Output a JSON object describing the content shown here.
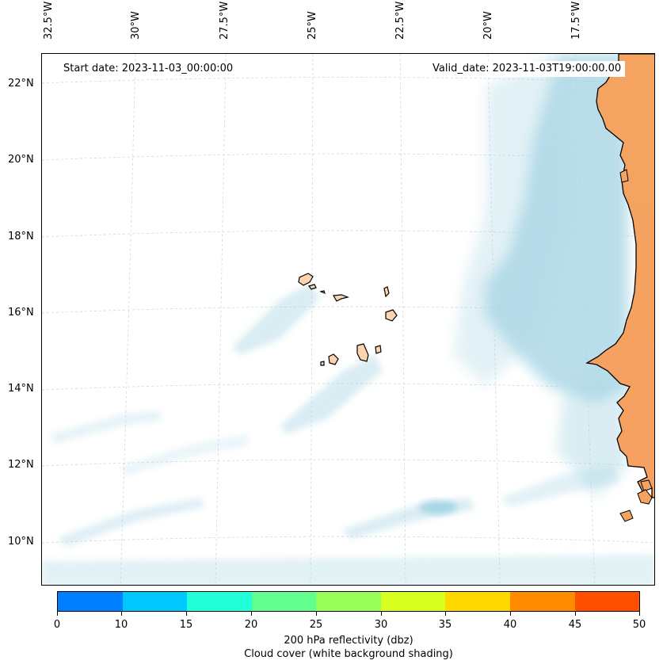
{
  "map": {
    "start_label": "Start date: 2023-11-03_00:00:00",
    "valid_label": "Valid_date: 2023-11-03T19:00:00.00",
    "lon_labels": [
      "32.5°W",
      "30°W",
      "27.5°W",
      "25°W",
      "22.5°W",
      "20°W",
      "17.5°W"
    ],
    "lat_labels": [
      "22°N",
      "20°N",
      "18°N",
      "16°N",
      "14°N",
      "12°N",
      "10°N"
    ],
    "extent": {
      "lon_min": -32.6,
      "lon_max": -15.4,
      "lat_min": 8.9,
      "lat_max": 22.8
    },
    "colors": {
      "land": "#f4a460",
      "island": "#fcd5b0",
      "cloud": "#add8e6",
      "grid": "#cccccc"
    }
  },
  "colorbar": {
    "ticks": [
      "0",
      "10",
      "15",
      "20",
      "25",
      "30",
      "35",
      "40",
      "45",
      "50"
    ],
    "colors": [
      "#0080ff",
      "#00c8ff",
      "#20ffd8",
      "#60ff90",
      "#98ff58",
      "#d8ff20",
      "#ffd800",
      "#ff8c00",
      "#ff5000"
    ],
    "label": "200 hPa reflectivity (dbz)",
    "sublabel": "Cloud cover (white background shading)"
  }
}
